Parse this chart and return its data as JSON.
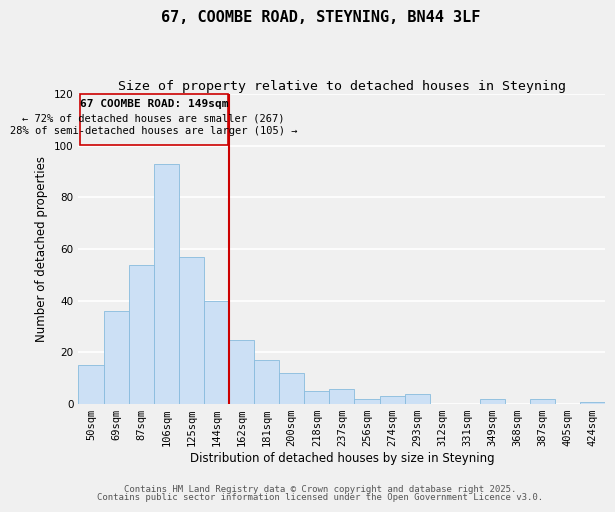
{
  "title": "67, COOMBE ROAD, STEYNING, BN44 3LF",
  "subtitle": "Size of property relative to detached houses in Steyning",
  "bar_labels": [
    "50sqm",
    "69sqm",
    "87sqm",
    "106sqm",
    "125sqm",
    "144sqm",
    "162sqm",
    "181sqm",
    "200sqm",
    "218sqm",
    "237sqm",
    "256sqm",
    "274sqm",
    "293sqm",
    "312sqm",
    "331sqm",
    "349sqm",
    "368sqm",
    "387sqm",
    "405sqm",
    "424sqm"
  ],
  "bar_values": [
    15,
    36,
    54,
    93,
    57,
    40,
    25,
    17,
    12,
    5,
    6,
    2,
    3,
    4,
    0,
    0,
    2,
    0,
    2,
    0,
    1
  ],
  "bar_color": "#cce0f5",
  "bar_edge_color": "#88bbdd",
  "ylim": [
    0,
    120
  ],
  "yticks": [
    0,
    20,
    40,
    60,
    80,
    100,
    120
  ],
  "xlabel": "Distribution of detached houses by size in Steyning",
  "ylabel": "Number of detached properties",
  "vline_x": 5.5,
  "vline_color": "#cc0000",
  "annotation_title": "67 COOMBE ROAD: 149sqm",
  "annotation_line1": "← 72% of detached houses are smaller (267)",
  "annotation_line2": "28% of semi-detached houses are larger (105) →",
  "footer1": "Contains HM Land Registry data © Crown copyright and database right 2025.",
  "footer2": "Contains public sector information licensed under the Open Government Licence v3.0.",
  "background_color": "#f0f0f0",
  "grid_color": "#ffffff",
  "title_fontsize": 11,
  "subtitle_fontsize": 9.5,
  "axis_label_fontsize": 8.5,
  "tick_fontsize": 7.5,
  "annotation_fontsize": 8,
  "footer_fontsize": 6.5
}
